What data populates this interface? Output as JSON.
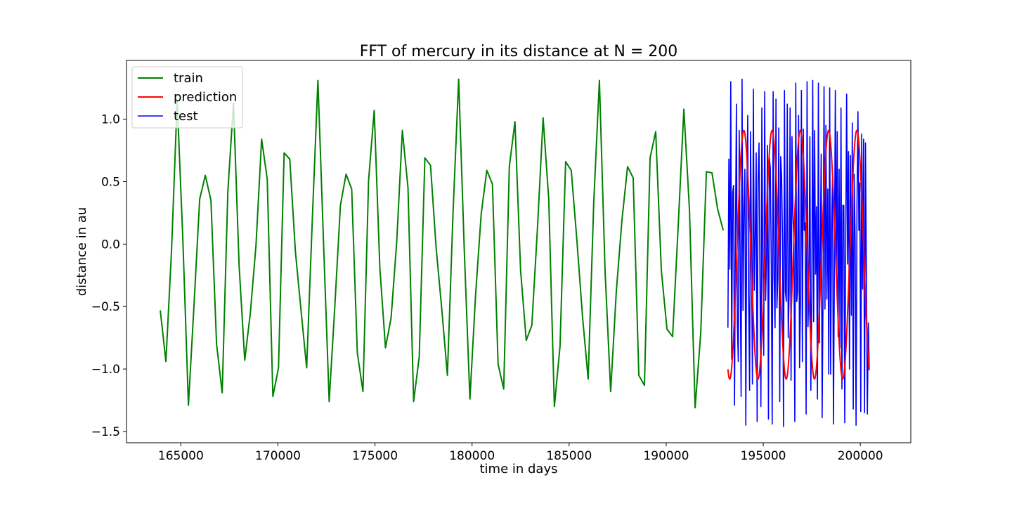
{
  "chart_data": {
    "type": "line",
    "title": "FFT of mercury in its distance at N = 200",
    "xlabel": "time in days",
    "ylabel": "distance in au",
    "xlim": [
      162200,
      202600
    ],
    "ylim": [
      -1.59,
      1.47
    ],
    "xticks": [
      165000,
      170000,
      175000,
      180000,
      185000,
      190000,
      195000,
      200000
    ],
    "yticks": [
      -1.5,
      -1.0,
      -0.5,
      0.0,
      0.5,
      1.0
    ],
    "ytick_labels": [
      "−1.5",
      "−1.0",
      "−0.5",
      "0.0",
      "0.5",
      "1.0"
    ],
    "grid": false,
    "legend": {
      "position": "top-left",
      "entries": [
        "train",
        "prediction",
        "test"
      ]
    },
    "colors": {
      "train": "#008000",
      "prediction": "#ff0000",
      "test": "#0000ff"
    },
    "series": [
      {
        "name": "train",
        "x": [
          163940,
          164230,
          164520,
          164810,
          165100,
          165390,
          165680,
          165970,
          166260,
          166550,
          166840,
          167130,
          167420,
          167710,
          168000,
          168290,
          168580,
          168870,
          169160,
          169450,
          169740,
          170030,
          170320,
          170610,
          170900,
          171190,
          171480,
          171770,
          172060,
          172350,
          172640,
          172930,
          173220,
          173510,
          173800,
          174090,
          174380,
          174670,
          174960,
          175250,
          175540,
          175830,
          176120,
          176410,
          176700,
          176990,
          177280,
          177570,
          177860,
          178150,
          178440,
          178730,
          179020,
          179310,
          179600,
          179890,
          180180,
          180470,
          180760,
          181050,
          181340,
          181630,
          181920,
          182210,
          182500,
          182790,
          183080,
          183370,
          183660,
          183950,
          184240,
          184530,
          184820,
          185110,
          185400,
          185690,
          185980,
          186270,
          186560,
          186850,
          187140,
          187430,
          187720,
          188010,
          188300,
          188590,
          188880,
          189170,
          189460,
          189750,
          190040,
          190330,
          190620,
          190910,
          191200,
          191490,
          191780,
          192070,
          192360,
          192650,
          192940
        ],
        "y": [
          -0.53,
          -0.94,
          -0.05,
          1.15,
          0.05,
          -1.29,
          -0.48,
          0.36,
          0.55,
          0.35,
          -0.8,
          -1.19,
          0.42,
          1.13,
          -0.17,
          -0.93,
          -0.55,
          -0.01,
          0.84,
          0.52,
          -1.22,
          -0.99,
          0.73,
          0.68,
          -0.06,
          -0.53,
          -0.99,
          0.19,
          1.31,
          0.01,
          -1.26,
          -0.5,
          0.31,
          0.56,
          0.44,
          -0.87,
          -1.18,
          0.51,
          1.07,
          -0.19,
          -0.83,
          -0.59,
          0.02,
          0.91,
          0.45,
          -1.26,
          -0.9,
          0.69,
          0.63,
          -0.03,
          -0.52,
          -1.05,
          0.25,
          1.32,
          -0.05,
          -1.24,
          -0.41,
          0.24,
          0.59,
          0.48,
          -0.96,
          -1.16,
          0.62,
          0.98,
          -0.21,
          -0.77,
          -0.65,
          0.13,
          1.01,
          0.36,
          -1.3,
          -0.82,
          0.66,
          0.59,
          0.03,
          -0.58,
          -1.08,
          0.34,
          1.31,
          -0.21,
          -1.18,
          -0.38,
          0.19,
          0.62,
          0.53,
          -1.05,
          -1.13,
          0.69,
          0.9,
          -0.21,
          -0.68,
          -0.74,
          0.15,
          1.08,
          0.27,
          -1.31,
          -0.71,
          0.58,
          0.57,
          0.28,
          0.11
        ]
      },
      {
        "name": "prediction",
        "x_start": 193180,
        "x_end": 200460,
        "period_days": 1455,
        "amplitude": 0.995,
        "offset": -0.085,
        "peak_x": 194000,
        "samples": 400
      },
      {
        "name": "test",
        "x_start": 193180,
        "x_end": 200460,
        "samples": 150,
        "y": [
          -0.67,
          0.68,
          -0.2,
          1.3,
          -0.92,
          0.41,
          0.47,
          -1.29,
          0.07,
          1.12,
          -0.64,
          -0.94,
          0.91,
          -0.18,
          -1.22,
          1.32,
          -0.53,
          0.28,
          0.6,
          -1.45,
          0.36,
          1.03,
          -0.43,
          -1.17,
          0.9,
          -0.03,
          -1.12,
          1.24,
          -0.37,
          0.05,
          0.73,
          -1.42,
          0.51,
          0.81,
          -0.25,
          -1.3,
          1.09,
          -0.17,
          -0.89,
          1.22,
          -0.45,
          -0.11,
          0.79,
          -1.4,
          0.69,
          0.61,
          -0.15,
          -1.44,
          1.22,
          -0.24,
          -0.67,
          1.16,
          -0.51,
          -0.26,
          0.93,
          -1.26,
          0.7,
          0.54,
          0.0,
          -1.46,
          1.23,
          -0.38,
          -0.46,
          1.12,
          -0.75,
          -0.37,
          1.09,
          -1.09,
          0.86,
          0.23,
          0.04,
          -1.42,
          1.29,
          -0.46,
          -0.38,
          1.03,
          -0.99,
          -0.46,
          1.23,
          -0.94,
          0.92,
          0.11,
          0.17,
          -1.36,
          1.3,
          -0.66,
          -0.22,
          0.86,
          -1.17,
          -0.43,
          1.31,
          -0.62,
          0.91,
          -0.24,
          0.3,
          -1.24,
          1.29,
          -0.79,
          -0.07,
          0.72,
          -1.39,
          -0.35,
          1.26,
          -0.52,
          0.95,
          -0.44,
          0.44,
          -1.04,
          1.25,
          -1.04,
          0.14,
          0.52,
          -1.44,
          -0.21,
          1.23,
          -0.23,
          0.9,
          -0.74,
          0.6,
          -0.83,
          1.09,
          -1.16,
          0.31,
          0.31,
          -1.43,
          -0.02,
          1.2,
          -0.16,
          0.74,
          -1.0,
          0.71,
          -0.57,
          0.97,
          -1.32,
          0.56,
          0.04,
          -1.45,
          0.33,
          1.06,
          0.11,
          0.49,
          -1.34,
          0.88,
          -0.36,
          0.84,
          -1.35,
          0.81,
          -0.29,
          -1.36,
          -0.63,
          -0.99
        ]
      }
    ]
  }
}
